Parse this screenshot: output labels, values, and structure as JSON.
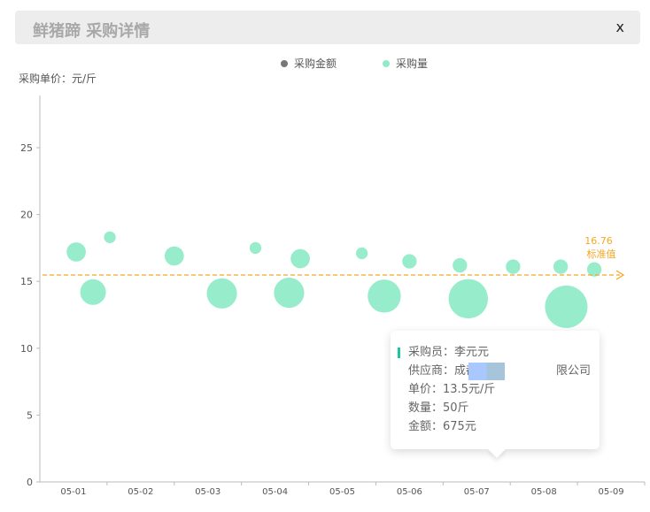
{
  "header": {
    "title": "鲜猪蹄 采购详情",
    "close": "x"
  },
  "legend": [
    {
      "name": "采购金额",
      "color": "#777777"
    },
    {
      "name": "采购量",
      "color": "#91ebc9"
    }
  ],
  "chart_data": {
    "type": "scatter",
    "ylabel": "采购单价：元/斤",
    "ylim": [
      0,
      28
    ],
    "yticks": [
      "0",
      "5",
      "10",
      "15",
      "20",
      "25"
    ],
    "categories": [
      "05-01",
      "05-02",
      "05-03",
      "05-04",
      "05-05",
      "05-06",
      "05-07",
      "05-08",
      "05-09"
    ],
    "grid": false,
    "series": [
      {
        "name": "采购量",
        "color": "#91ebc9",
        "points": [
          {
            "x": "05-01 13:00",
            "y": 17.2,
            "size": 0.14
          },
          {
            "x": "05-01 19:00",
            "y": 14.2,
            "size": 0.3
          },
          {
            "x": "05-02 01:00",
            "y": 18.3,
            "size": 0.03
          },
          {
            "x": "05-03 00:00",
            "y": 16.9,
            "size": 0.14
          },
          {
            "x": "05-03 17:00",
            "y": 14.1,
            "size": 0.45
          },
          {
            "x": "05-04 05:00",
            "y": 17.5,
            "size": 0.03
          },
          {
            "x": "05-04 17:00",
            "y": 14.15,
            "size": 0.45
          },
          {
            "x": "05-04 21:00",
            "y": 16.7,
            "size": 0.14
          },
          {
            "x": "05-05 19:00",
            "y": 17.1,
            "size": 0.03
          },
          {
            "x": "05-06 03:00",
            "y": 13.9,
            "size": 0.56
          },
          {
            "x": "05-06 12:00",
            "y": 16.5,
            "size": 0.06
          },
          {
            "x": "05-07 06:00",
            "y": 16.2,
            "size": 0.06
          },
          {
            "x": "05-07 09:00",
            "y": 13.7,
            "size": 0.84
          },
          {
            "x": "05-08 01:00",
            "y": 16.1,
            "size": 0.06
          },
          {
            "x": "05-08 18:00",
            "y": 16.1,
            "size": 0.06
          },
          {
            "x": "05-08 20:00",
            "y": 13.1,
            "size": 1.0
          },
          {
            "x": "05-09 06:00",
            "y": 15.9,
            "size": 0.06
          }
        ]
      }
    ],
    "markline": {
      "value": "16.76",
      "label": "标准值",
      "color": "#f5a623"
    }
  },
  "tooltip": {
    "buyer": "采购员：李元元",
    "supplier_prefix": "供应商：成都",
    "supplier_suffix": "限公司",
    "price": "单价：13.5元/斤",
    "qty": "数量：50斤",
    "amount": "金额：675元"
  }
}
